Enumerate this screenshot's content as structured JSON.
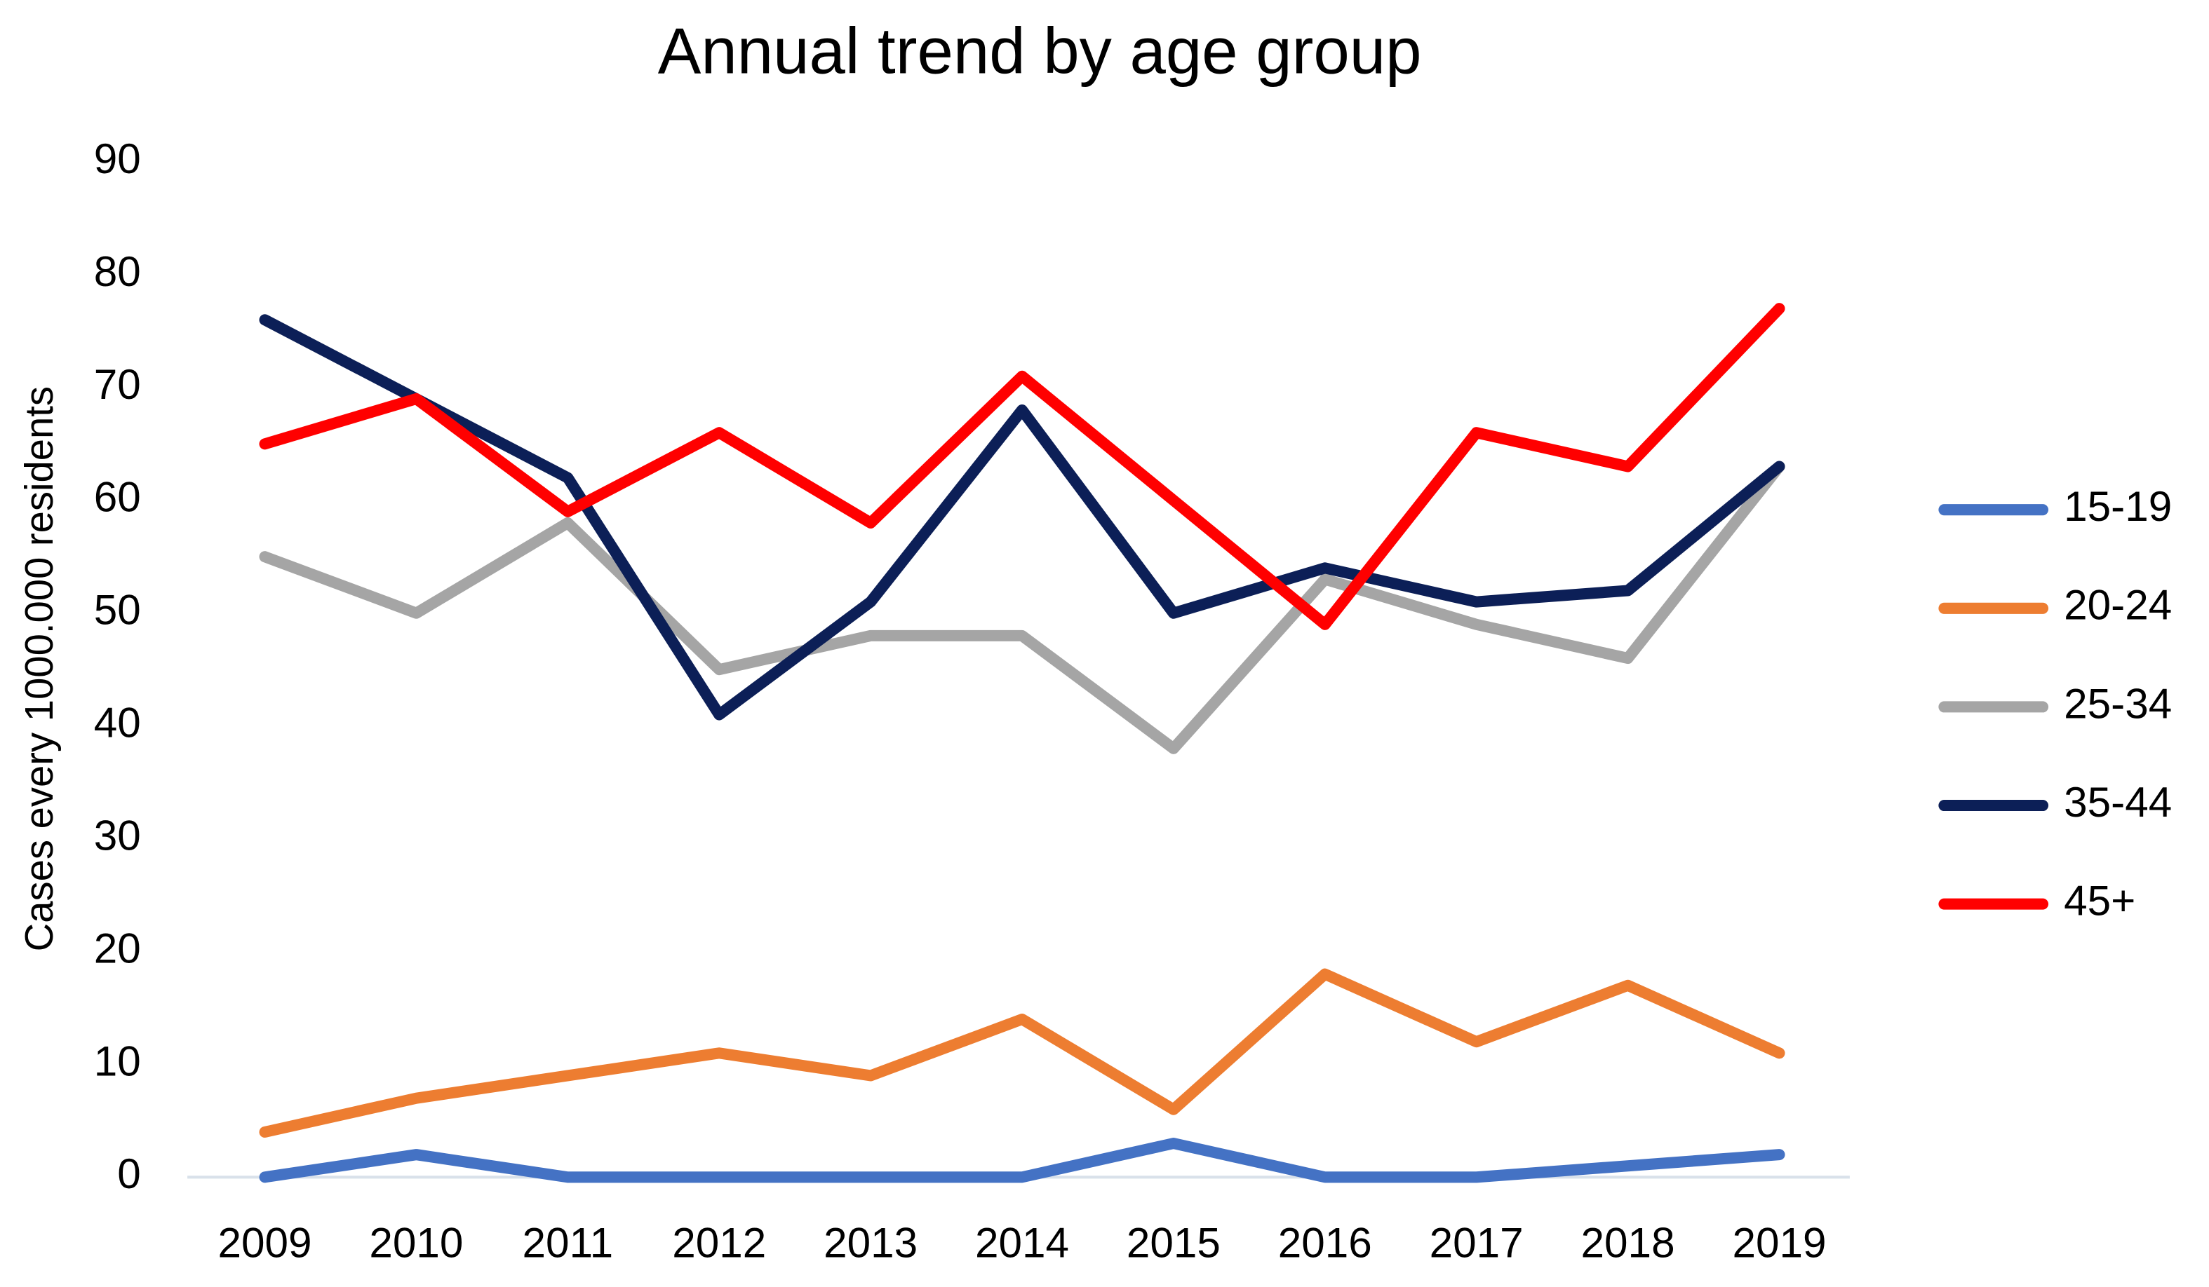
{
  "chart_data": {
    "type": "line",
    "title": "Annual trend by age group",
    "y_label": "Cases every 1000.000 residents",
    "categories": [
      "2009",
      "2010",
      "2011",
      "2012",
      "2013",
      "2014",
      "2015",
      "2016",
      "2017",
      "2018",
      "2019"
    ],
    "series": [
      {
        "name": "15-19",
        "color": "#4472c4",
        "values": [
          0,
          2,
          0,
          0,
          0,
          0,
          3,
          0,
          0,
          1,
          2
        ]
      },
      {
        "name": "20-24",
        "color": "#ed7d31",
        "values": [
          4,
          7,
          9,
          11,
          9,
          14,
          6,
          18,
          12,
          17,
          11
        ]
      },
      {
        "name": "25-34",
        "color": "#a5a5a5",
        "values": [
          55,
          50,
          58,
          45,
          48,
          48,
          38,
          53,
          49,
          46,
          63
        ]
      },
      {
        "name": "35-44",
        "color": "#0c1f57",
        "values": [
          76,
          69,
          62,
          41,
          51,
          68,
          50,
          54,
          51,
          52,
          63
        ]
      },
      {
        "name": "45+",
        "color": "#ff0000",
        "values": [
          65,
          69,
          59,
          66,
          58,
          71,
          60,
          49,
          66,
          63,
          77
        ]
      }
    ],
    "ylim": [
      0,
      90
    ],
    "yticks": [
      0,
      10,
      20,
      30,
      40,
      50,
      60,
      70,
      80,
      90
    ],
    "grid": false,
    "legend": "right"
  }
}
